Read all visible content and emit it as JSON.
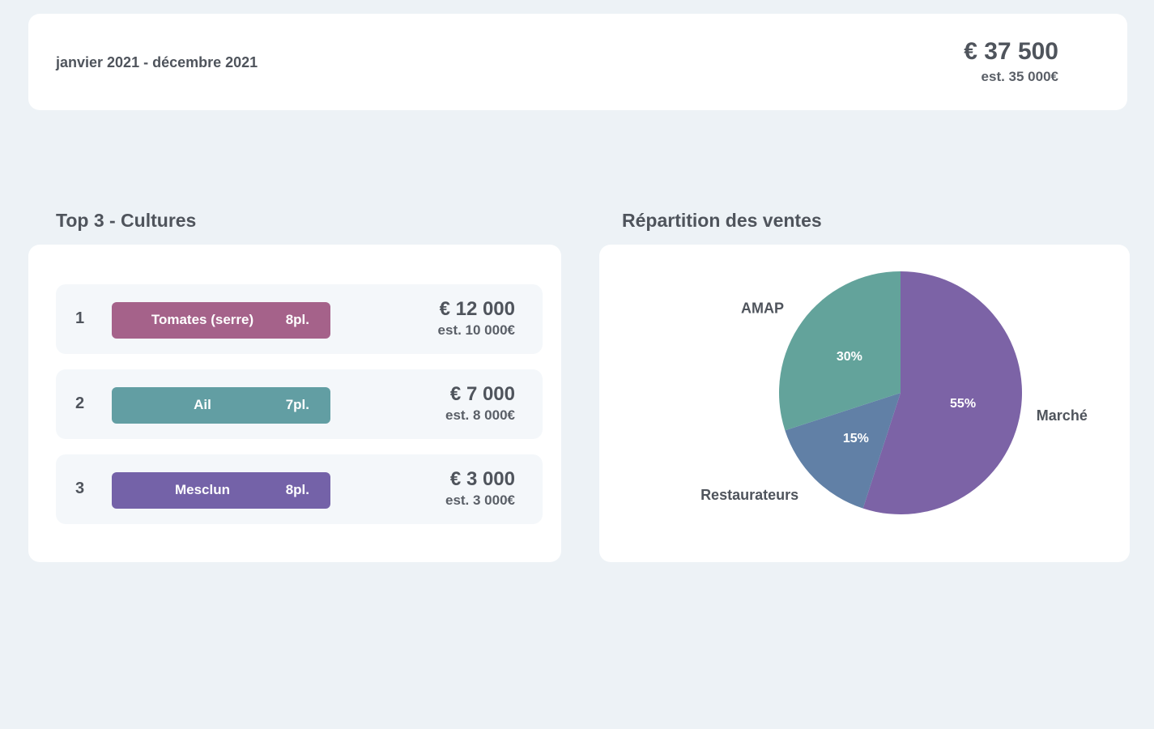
{
  "header": {
    "period": "janvier 2021 - décembre 2021",
    "total": "€ 37 500",
    "total_estimate": "est. 35 000€"
  },
  "top_crops": {
    "title": "Top 3 - Cultures",
    "items": [
      {
        "rank": "1",
        "name": "Tomates (serre)",
        "plots": "8pl.",
        "value": "€ 12 000",
        "estimate": "est. 10 000€",
        "color": "#a5628a"
      },
      {
        "rank": "2",
        "name": "Ail",
        "plots": "7pl.",
        "value": "€ 7 000",
        "estimate": "est. 8 000€",
        "color": "#629ea3"
      },
      {
        "rank": "3",
        "name": "Mesclun",
        "plots": "8pl.",
        "value": "€ 3 000",
        "estimate": "est. 3 000€",
        "color": "#7462a8"
      }
    ]
  },
  "sales": {
    "title": "Répartition des ventes",
    "chart_data": {
      "type": "pie",
      "title": "Répartition des ventes",
      "categories": [
        "Marché",
        "Restaurateurs",
        "AMAP"
      ],
      "values": [
        55,
        15,
        30
      ],
      "value_labels": [
        "55%",
        "15%",
        "30%"
      ],
      "colors": [
        "#7c63a6",
        "#6180a6",
        "#63a39b"
      ]
    }
  }
}
